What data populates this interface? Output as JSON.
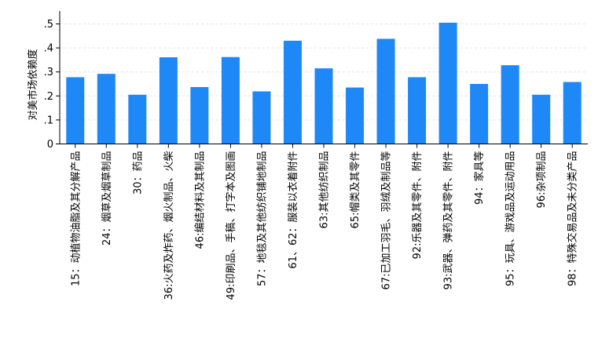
{
  "chart_data": {
    "type": "bar",
    "title": "",
    "xlabel": "",
    "ylabel": "对美市场依赖度",
    "ylim": [
      0,
      0.55
    ],
    "yticks": [
      0,
      0.1,
      0.2,
      0.3,
      0.4,
      0.5
    ],
    "ytick_labels": [
      "0",
      ".1",
      ".2",
      ".3",
      ".4",
      ".5"
    ],
    "grid": true,
    "bar_color": "#1e88f7",
    "categories": [
      "15：动植物油脂及其分解产品",
      "24：烟草及烟草制品",
      "30：药品",
      "36:火药及炸药、烟火制品、火柴",
      "46:编结材料及其制品",
      "49:印刷品、手稿、打字本及图画",
      "57：地毯及其他纺织铺地制品",
      "61、62：服装以衣着附件",
      "63:其他纺织制品",
      "65:帽类及其零件",
      "67:已加工羽毛、羽绒及制品等",
      "92:乐器及其零件、附件",
      "93:武器、弹药及其零件、附件",
      "94：家具等",
      "95：玩具、游戏品及运动用品",
      "96:杂项制品",
      "98：特殊交易品及未分类产品"
    ],
    "values": [
      0.278,
      0.292,
      0.205,
      0.361,
      0.237,
      0.362,
      0.219,
      0.43,
      0.315,
      0.235,
      0.438,
      0.278,
      0.505,
      0.25,
      0.328,
      0.205,
      0.258
    ]
  }
}
